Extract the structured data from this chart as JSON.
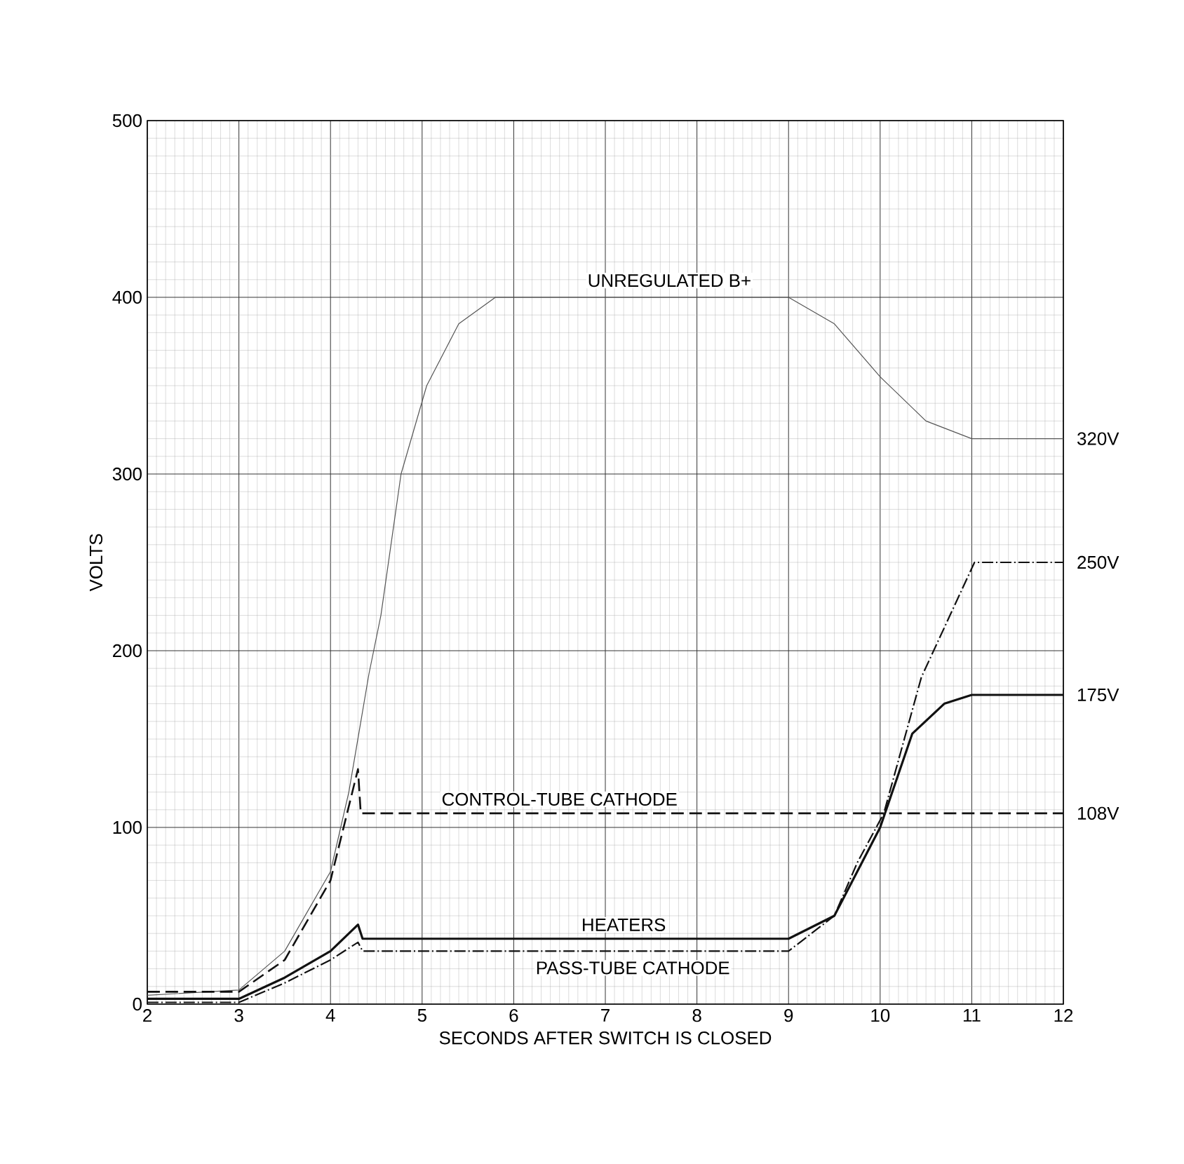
{
  "chart_data": {
    "type": "line",
    "xlabel": "SECONDS AFTER SWITCH IS CLOSED",
    "ylabel": "VOLTS",
    "xlim": [
      2,
      12
    ],
    "ylim": [
      0,
      500
    ],
    "xticks": [
      2,
      3,
      4,
      5,
      6,
      7,
      8,
      9,
      10,
      11,
      12
    ],
    "yticks": [
      0,
      100,
      200,
      300,
      400,
      500
    ],
    "grid": true,
    "marker": "none",
    "series": [
      {
        "name": "UNREGULATED B+",
        "color": "#555555",
        "line_style": "solid",
        "x": [
          2,
          3,
          3.5,
          4,
          4.2,
          4.42,
          4.55,
          4.77,
          5.05,
          5.4,
          5.8,
          9,
          9.5,
          10,
          10.5,
          11,
          12
        ],
        "values": [
          5,
          8,
          30,
          75,
          120,
          187,
          220,
          300,
          350,
          385,
          400,
          400,
          385,
          355,
          330,
          320,
          320
        ],
        "value_labels": [
          null,
          null,
          null,
          null,
          null,
          null,
          null,
          null,
          null,
          null,
          null,
          null,
          null,
          null,
          null,
          null,
          "320V"
        ]
      },
      {
        "name": "CONTROL-TUBE CATHODE",
        "color": "#111111",
        "line_style": "dashed",
        "x": [
          2,
          3,
          3.5,
          4,
          4.3,
          4.33,
          12
        ],
        "values": [
          7,
          7,
          25,
          70,
          133,
          108,
          108
        ],
        "value_labels": [
          null,
          null,
          null,
          null,
          null,
          null,
          "108V"
        ]
      },
      {
        "name": "HEATERS",
        "color": "#111111",
        "line_style": "solid",
        "x": [
          2,
          3,
          3.5,
          4,
          4.3,
          4.35,
          9,
          9.5,
          10,
          10.35,
          10.7,
          11,
          12
        ],
        "values": [
          3,
          3,
          15,
          30,
          45,
          37,
          37,
          50,
          100,
          153,
          170,
          175,
          175
        ],
        "value_labels": [
          null,
          null,
          null,
          null,
          null,
          null,
          null,
          null,
          null,
          null,
          null,
          null,
          "175V"
        ]
      },
      {
        "name": "PASS-TUBE CATHODE",
        "color": "#111111",
        "line_style": "dashdot",
        "x": [
          2,
          3,
          3.5,
          4,
          4.3,
          4.35,
          9,
          9.5,
          9.75,
          10.04,
          10.45,
          11.03,
          12
        ],
        "values": [
          1,
          1,
          12,
          25,
          35,
          30,
          30,
          50,
          80,
          108,
          185,
          250,
          250
        ],
        "value_labels": [
          null,
          null,
          null,
          null,
          null,
          null,
          null,
          null,
          null,
          null,
          null,
          null,
          "250V"
        ]
      }
    ]
  }
}
